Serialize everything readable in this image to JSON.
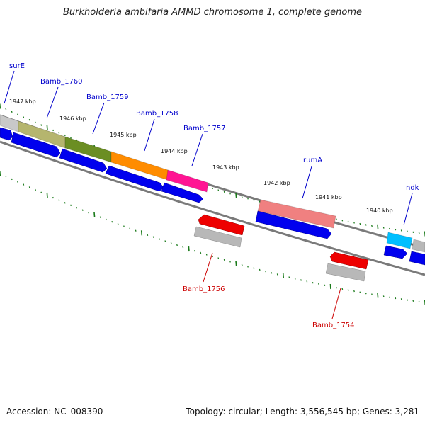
{
  "title": "Burkholderia ambifaria AMMD chromosome 1, complete genome",
  "footer": {
    "accession": "Accession: NC_008390",
    "summary": "Topology: circular; Length: 3,556,545 bp; Genes: 3,281"
  },
  "colors": {
    "backbone": "#7a7a7a",
    "tick": "#1a7a1a",
    "label_forward": "#0000cc",
    "label_reverse": "#cc0000",
    "cds_forward": "#0000ee",
    "cds_reverse": "#ee0000",
    "cds_rna_gray": "#b8b8b8"
  },
  "ticks": [
    "1947 kbp",
    "1946 kbp",
    "1945 kbp",
    "1944 kbp",
    "1943 kbp",
    "1942 kbp",
    "1941 kbp",
    "1940 kbp"
  ],
  "genes_forward": [
    {
      "label": "surE",
      "color": "#c8c8c8"
    },
    {
      "label": "Bamb_1760",
      "color": "#b5b56e"
    },
    {
      "label": "Bamb_1759",
      "color": "#6b8e23"
    },
    {
      "label": "Bamb_1758",
      "color": "#ff8c00"
    },
    {
      "label": "Bamb_1757",
      "color": "#ff1493"
    },
    {
      "label": "rumA",
      "color": "#f08080"
    },
    {
      "label": "ndk",
      "color": "#00bfff"
    }
  ],
  "genes_reverse": [
    {
      "label": "Bamb_1756",
      "color": "#ee0000"
    },
    {
      "label": "Bamb_1754",
      "color": "#ee0000"
    }
  ]
}
